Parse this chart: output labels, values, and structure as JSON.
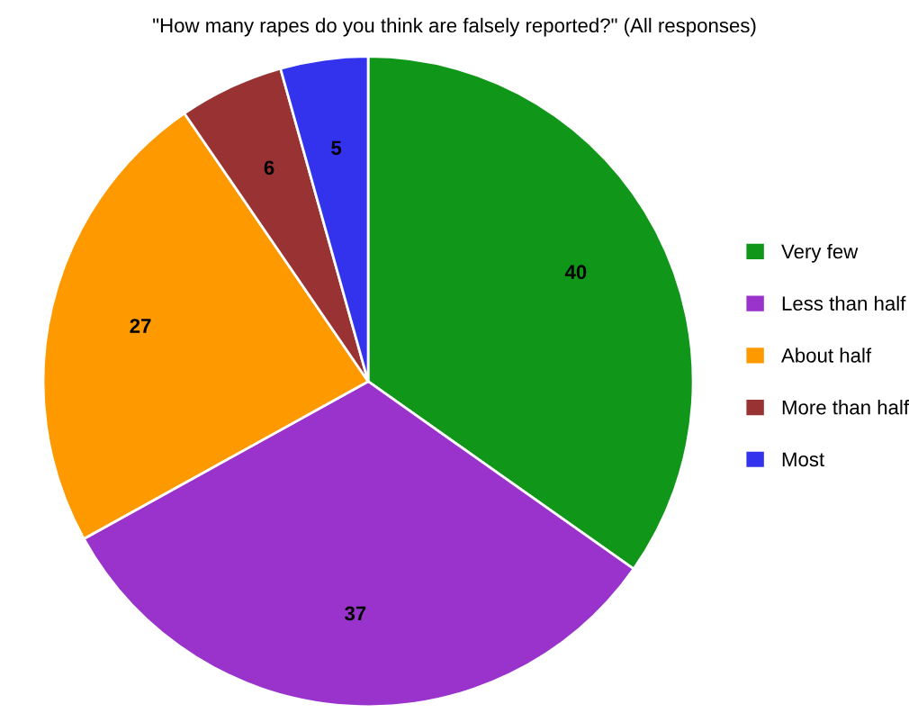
{
  "chart_data": {
    "type": "pie",
    "title": "\"How many rapes do you think are falsely reported?\" (All responses)",
    "categories": [
      "Very few",
      "Less than half",
      "About half",
      "More than half",
      "Most"
    ],
    "values": [
      40,
      37,
      27,
      6,
      5
    ],
    "colors": [
      "#109618",
      "#9933cc",
      "#ff9900",
      "#993333",
      "#3333ee"
    ],
    "data_labels": true,
    "legend": "right"
  }
}
